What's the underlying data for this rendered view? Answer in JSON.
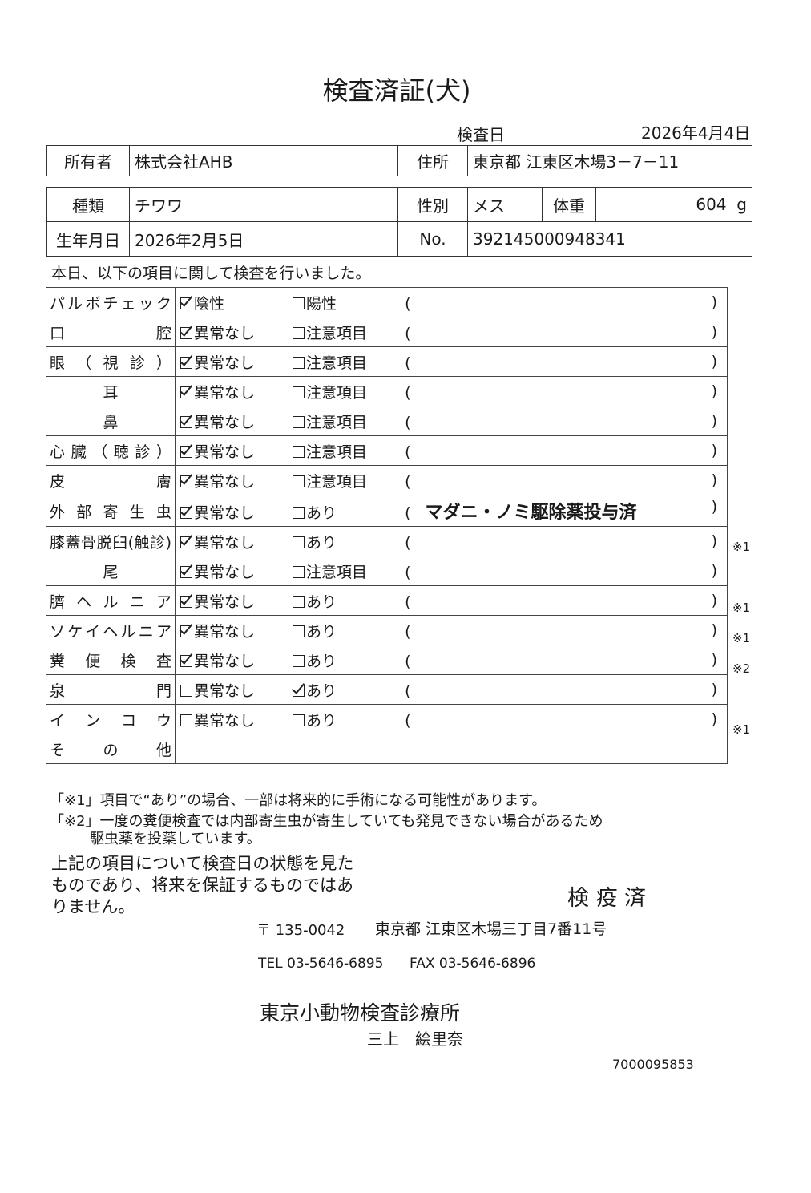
{
  "title": "検査済証(犬)",
  "exam_date": {
    "label": "検査日",
    "value": "2026年4月4日"
  },
  "owner": {
    "label": "所有者",
    "value": "株式会社AHB"
  },
  "address": {
    "label": "住所",
    "value": "東京都 江東区木場3－7－11"
  },
  "breed": {
    "label": "種類",
    "value": "チワワ"
  },
  "sex": {
    "label": "性別",
    "value": "メス"
  },
  "weight": {
    "label": "体重",
    "value": "604",
    "unit": "g"
  },
  "birthdate": {
    "label": "生年月日",
    "value": "2026年2月5日"
  },
  "number": {
    "label": "No.",
    "value": "392145000948341"
  },
  "intro": "本日、以下の項目に関して検査を行いました。",
  "rows": [
    {
      "label": "パルボチェック",
      "opt1": "陰性",
      "on1": true,
      "opt2": "陽性",
      "on2": false,
      "note": "",
      "mark": ""
    },
    {
      "label": "口腔",
      "opt1": "異常なし",
      "on1": true,
      "opt2": "注意項目",
      "on2": false,
      "note": "",
      "mark": ""
    },
    {
      "label": "眼（視診）",
      "opt1": "異常なし",
      "on1": true,
      "opt2": "注意項目",
      "on2": false,
      "note": "",
      "mark": ""
    },
    {
      "label": "耳",
      "opt1": "異常なし",
      "on1": true,
      "opt2": "注意項目",
      "on2": false,
      "note": "",
      "mark": "",
      "center": true
    },
    {
      "label": "鼻",
      "opt1": "異常なし",
      "on1": true,
      "opt2": "注意項目",
      "on2": false,
      "note": "",
      "mark": "",
      "center": true
    },
    {
      "label": "心臓（聴診）",
      "opt1": "異常なし",
      "on1": true,
      "opt2": "注意項目",
      "on2": false,
      "note": "",
      "mark": ""
    },
    {
      "label": "皮膚",
      "opt1": "異常なし",
      "on1": true,
      "opt2": "注意項目",
      "on2": false,
      "note": "",
      "mark": ""
    },
    {
      "label": "外部寄生虫",
      "opt1": "異常なし",
      "on1": true,
      "opt2": "あり",
      "on2": false,
      "note": "マダニ・ノミ駆除薬投与済",
      "mark": ""
    },
    {
      "label": "膝蓋骨脱臼(触診)",
      "opt1": "異常なし",
      "on1": true,
      "opt2": "あり",
      "on2": false,
      "note": "",
      "mark": "※1"
    },
    {
      "label": "尾",
      "opt1": "異常なし",
      "on1": true,
      "opt2": "注意項目",
      "on2": false,
      "note": "",
      "mark": "",
      "center": true
    },
    {
      "label": "臍ヘルニア",
      "opt1": "異常なし",
      "on1": true,
      "opt2": "あり",
      "on2": false,
      "note": "",
      "mark": "※1"
    },
    {
      "label": "ソケイヘルニア",
      "opt1": "異常なし",
      "on1": true,
      "opt2": "あり",
      "on2": false,
      "note": "",
      "mark": "※1"
    },
    {
      "label": "糞便検査",
      "opt1": "異常なし",
      "on1": true,
      "opt2": "あり",
      "on2": false,
      "note": "",
      "mark": "※2"
    },
    {
      "label": "泉門",
      "opt1": "異常なし",
      "on1": false,
      "opt2": "あり",
      "on2": true,
      "note": "",
      "mark": ""
    },
    {
      "label": "インコウ",
      "opt1": "異常なし",
      "on1": false,
      "opt2": "あり",
      "on2": false,
      "note": "",
      "mark": "※1"
    }
  ],
  "other_label": "その他",
  "paren_open": "(",
  "paren_close": ")",
  "footnote1": "「※1」項目で“あり”の場合、一部は将来的に手術になる可能性があります。",
  "footnote2a": "「※2」一度の糞便検査では内部寄生虫が寄生していても発見できない場合があるため",
  "footnote2b": "駆虫薬を投薬しています。",
  "disclaimer": "上記の項目について検査日の状態を見たものであり、将来を保証するものではありません。",
  "quarantine": "検 疫 済",
  "postal": "〒 135-0042",
  "clinic_address": "東京都 江東区木場三丁目7番11号",
  "tel": "TEL 03-5646-6895",
  "fax": "FAX 03-5646-6896",
  "clinic_name": "東京小動物検査診療所",
  "vet_name": "三上　絵里奈",
  "doc_number": "7000095853"
}
